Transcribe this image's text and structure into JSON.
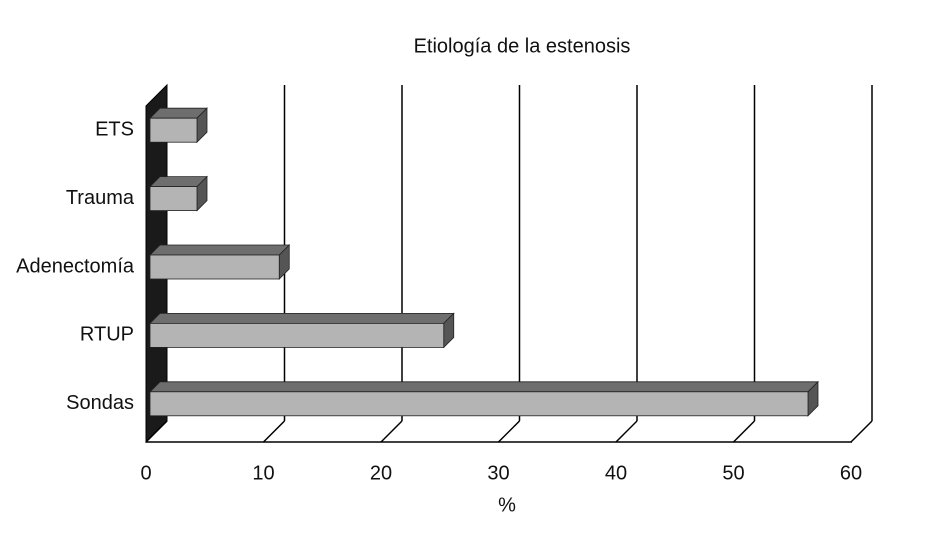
{
  "chart_data": {
    "type": "bar3d",
    "orientation": "horizontal",
    "title": "Etiología de la estenosis",
    "x_label": "%",
    "categories": [
      "ETS",
      "Trauma",
      "Adenectomía",
      "RTUP",
      "Sondas"
    ],
    "values": [
      4,
      4,
      11,
      25,
      56
    ],
    "color": "#b4b4b4",
    "xlim": [
      0,
      60
    ],
    "xticks": [
      0,
      10,
      20,
      30,
      40,
      50,
      60
    ],
    "grid": true
  }
}
